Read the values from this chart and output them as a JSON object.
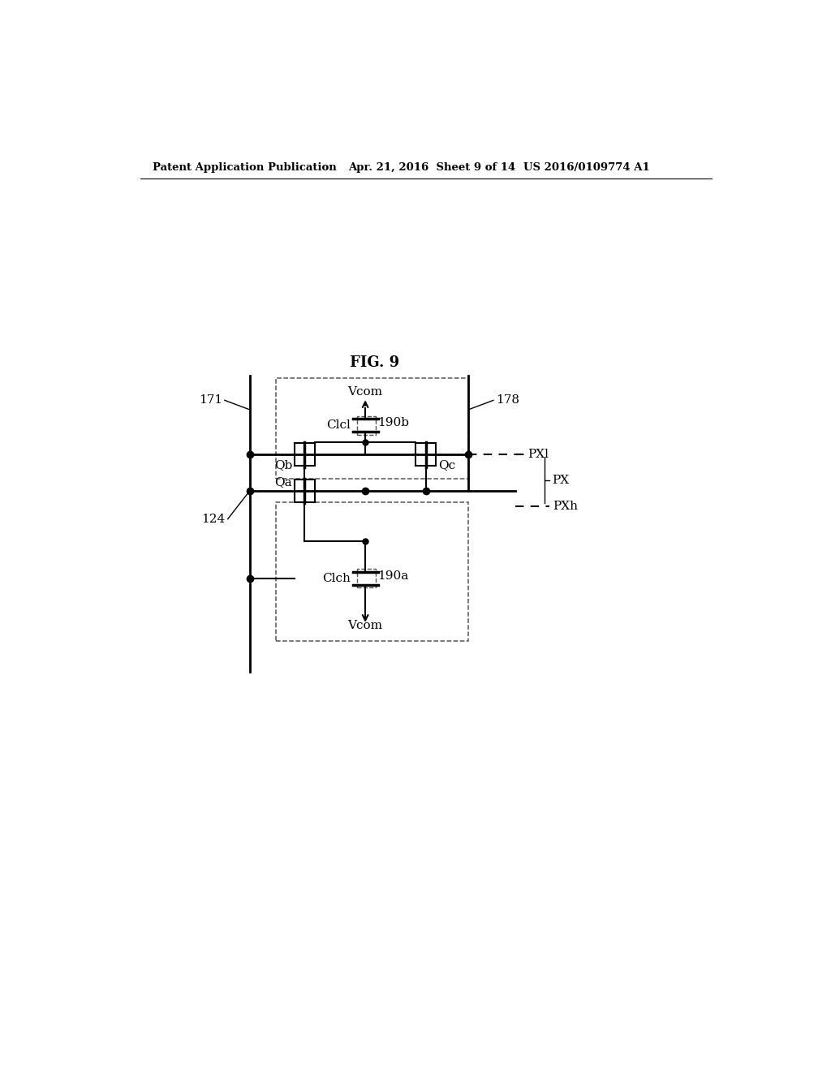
{
  "title": "FIG. 9",
  "header_left": "Patent Application Publication",
  "header_mid": "Apr. 21, 2016  Sheet 9 of 14",
  "header_right": "US 2016/0109774 A1",
  "bg_color": "#ffffff",
  "line_color": "#000000",
  "label_171": "171",
  "label_178": "178",
  "label_124": "124",
  "label_Vcom_top": "Vcom",
  "label_Vcom_bot": "Vcom",
  "label_Clcl": "Clcl",
  "label_Clch": "Clch",
  "label_190b": "190b",
  "label_190a": "190a",
  "label_Qb": "Qb",
  "label_Qc": "Qc",
  "label_Qa": "Qa",
  "label_PXl": "PXl",
  "label_PXh": "PXh",
  "label_PX": "PX"
}
